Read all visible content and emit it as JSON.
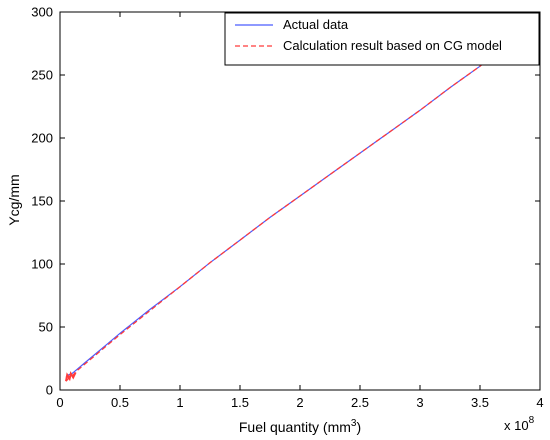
{
  "chart_data": {
    "type": "line",
    "xlabel": "Fuel quantity (mm",
    "xlabel_superscript": "3",
    "xlabel_suffix": ")",
    "ylabel": "Ycg/mm",
    "x_multiplier_text": "x 10",
    "x_multiplier_exponent": "8",
    "xlim": [
      0,
      4
    ],
    "ylim": [
      0,
      300
    ],
    "x_ticks": [
      "0",
      "0.5",
      "1",
      "1.5",
      "2",
      "2.5",
      "3",
      "3.5",
      "4"
    ],
    "y_ticks": [
      "0",
      "50",
      "100",
      "150",
      "200",
      "250",
      "300"
    ],
    "grid": false,
    "legend_position": "top-right",
    "series": [
      {
        "name": "Actual data",
        "color": "#4a5cff",
        "style": "solid",
        "x": [
          0.05,
          0.07,
          0.1,
          0.15,
          0.2,
          0.3,
          0.4,
          0.5,
          0.75,
          1.0,
          1.25,
          1.5,
          1.75,
          2.0,
          2.25,
          2.5,
          2.75,
          3.0,
          3.25,
          3.5,
          3.55
        ],
        "y": [
          10,
          12,
          13,
          17,
          21,
          29,
          37,
          45,
          64,
          82,
          101,
          119,
          137,
          154,
          171,
          188,
          205,
          222,
          240,
          257,
          261
        ]
      },
      {
        "name": "Calculation result based on CG model",
        "color": "#ff3b3b",
        "style": "dashed",
        "x": [
          0.05,
          0.07,
          0.1,
          0.15,
          0.2,
          0.3,
          0.4,
          0.5,
          0.75,
          1.0,
          1.25,
          1.5,
          1.75,
          2.0,
          2.25,
          2.5,
          2.75,
          3.0,
          3.25,
          3.5,
          3.55
        ],
        "y": [
          7,
          9,
          11,
          16,
          20,
          28,
          36,
          44,
          63,
          82,
          101,
          119,
          137,
          154,
          171,
          188,
          205,
          222,
          240,
          257,
          261
        ]
      }
    ]
  }
}
